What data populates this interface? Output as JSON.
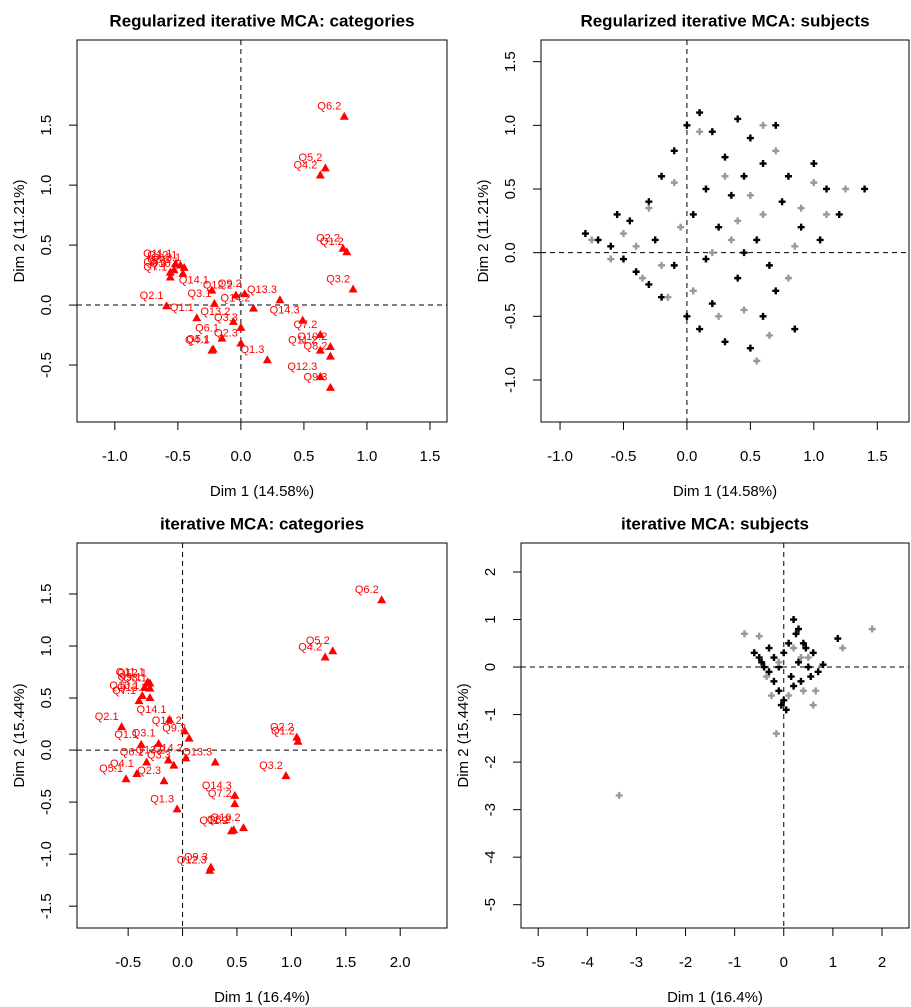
{
  "chart_data": [
    {
      "type": "scatter",
      "marker": "triangle",
      "color": "#ff0000",
      "title": "Regularized iterative MCA: categories",
      "xlabel": "Dim 1 (14.58%)",
      "ylabel": "Dim 2 (11.21%)",
      "xlim": [
        -1.3,
        1.635
      ],
      "ylim": [
        -0.975,
        2.21
      ],
      "xticks": [
        {
          "value": -1,
          "label": "-1.0"
        },
        -0.5,
        {
          "value": 0,
          "label": "0.0"
        },
        0.5,
        {
          "value": 1,
          "label": "1.0"
        },
        1.5
      ],
      "yticks": [
        -0.5,
        {
          "value": 0,
          "label": "0.0"
        },
        0.5,
        {
          "value": 1,
          "label": "1.0"
        },
        1.5
      ],
      "hline": 0,
      "vline": 0,
      "labels": [
        "Q6.2",
        "Q5.2",
        "Q4.2",
        "Q2.2",
        "Q1.2",
        "Q3.2",
        "Q11.1",
        "Q12.1",
        "Q8.1",
        "Q13.1",
        "Q9.1",
        "Q10.1",
        "Q7.1",
        "Q12.2",
        "Q14.1",
        "Q9.2",
        "Q2.1",
        "Q3.1",
        "Q1.1",
        "Q13.2",
        "Q14.2",
        "Q13.3",
        "Q3.3",
        "Q2.3",
        "Q6.1",
        "Q4.1",
        "Q5.1",
        "Q1.3",
        "Q14.3",
        "Q7.2",
        "Q11.2",
        "Q10.2",
        "Q8.2",
        "Q12.3",
        "Q9.3"
      ],
      "x": [
        0.82,
        0.67,
        0.63,
        0.81,
        0.84,
        0.89,
        -0.52,
        -0.48,
        -0.53,
        -0.45,
        -0.56,
        -0.46,
        -0.56,
        -0.04,
        -0.23,
        0.03,
        -0.59,
        -0.21,
        -0.35,
        -0.06,
        0.1,
        0.31,
        0,
        0,
        -0.15,
        -0.23,
        -0.22,
        0.21,
        0.49,
        0.63,
        0.63,
        0.71,
        0.71,
        0.63,
        0.71
      ],
      "y": [
        1.57,
        1.14,
        1.08,
        0.47,
        0.44,
        0.13,
        0.34,
        0.33,
        0.29,
        0.31,
        0.27,
        0.26,
        0.23,
        0.08,
        0.12,
        0.09,
        -0.01,
        0.01,
        -0.11,
        -0.14,
        -0.03,
        0.04,
        -0.19,
        -0.32,
        -0.28,
        -0.38,
        -0.37,
        -0.46,
        -0.13,
        -0.25,
        -0.38,
        -0.35,
        -0.43,
        -0.6,
        -0.69
      ]
    },
    {
      "type": "scatter",
      "marker": "plus",
      "title": "Regularized iterative MCA: subjects",
      "xlabel": "Dim 1 (14.58%)",
      "ylabel": "Dim 2 (11.21%)",
      "xlim": [
        -1.15,
        1.75
      ],
      "ylim": [
        -1.33,
        1.67
      ],
      "xticks": [
        {
          "value": -1,
          "label": "-1.0"
        },
        -0.5,
        {
          "value": 0,
          "label": "0.0"
        },
        0.5,
        {
          "value": 1,
          "label": "1.0"
        },
        1.5
      ],
      "yticks": [
        {
          "value": -1,
          "label": "-1.0"
        },
        -0.5,
        {
          "value": 0,
          "label": "0.0"
        },
        0.5,
        {
          "value": 1,
          "label": "1.0"
        },
        1.5
      ],
      "hline": 0,
      "vline": 0,
      "series": [
        {
          "color": "#000000",
          "x": [
            -0.8,
            -0.7,
            -0.6,
            -0.5,
            -0.45,
            -0.4,
            -0.3,
            -0.3,
            -0.2,
            -0.2,
            -0.1,
            -0.1,
            0,
            0,
            0.05,
            0.1,
            0.1,
            0.15,
            0.2,
            0.2,
            0.25,
            0.3,
            0.3,
            0.35,
            0.4,
            0.4,
            0.45,
            0.5,
            0.5,
            0.55,
            0.6,
            0.6,
            0.7,
            0.7,
            0.75,
            0.8,
            0.85,
            0.9,
            1.0,
            1.05,
            1.1,
            1.2,
            1.4,
            -0.55,
            -0.25,
            0.15,
            0.45,
            0.65
          ],
          "y": [
            0.15,
            0.1,
            0.05,
            -0.05,
            0.25,
            -0.15,
            0.4,
            -0.25,
            0.6,
            -0.35,
            0.8,
            -0.1,
            1.0,
            -0.5,
            0.3,
            1.1,
            -0.6,
            0.5,
            0.95,
            -0.4,
            0.2,
            0.75,
            -0.7,
            0.45,
            1.05,
            -0.2,
            0.6,
            0.9,
            -0.75,
            0.1,
            0.7,
            -0.5,
            1.0,
            -0.3,
            0.4,
            0.6,
            -0.6,
            0.2,
            0.7,
            0.1,
            0.5,
            0.3,
            0.5,
            0.3,
            0.1,
            -0.05,
            0.0,
            -0.1
          ]
        },
        {
          "color": "#999999",
          "x": [
            -0.75,
            -0.6,
            -0.5,
            -0.35,
            -0.3,
            -0.2,
            -0.1,
            -0.05,
            0.05,
            0.1,
            0.2,
            0.25,
            0.3,
            0.4,
            0.45,
            0.5,
            0.55,
            0.6,
            0.7,
            0.8,
            0.9,
            1.0,
            1.1,
            1.25,
            -0.4,
            -0.15,
            0.35,
            0.65,
            0.85,
            0.6
          ],
          "y": [
            0.1,
            -0.05,
            0.15,
            -0.2,
            0.35,
            -0.1,
            0.55,
            0.2,
            -0.3,
            0.95,
            0.0,
            -0.5,
            0.6,
            0.25,
            -0.45,
            0.45,
            -0.85,
            0.3,
            0.8,
            -0.2,
            0.35,
            0.55,
            0.3,
            0.5,
            0.05,
            -0.35,
            0.1,
            -0.65,
            0.05,
            1.0
          ]
        }
      ]
    },
    {
      "type": "scatter",
      "marker": "triangle",
      "color": "#ff0000",
      "title": "iterative MCA: categories",
      "xlabel": "Dim 1 (16.4%)",
      "ylabel": "Dim 2 (15.44%)",
      "xlim": [
        -0.97,
        2.43
      ],
      "ylim": [
        -1.71,
        1.99
      ],
      "xticks": [
        -0.5,
        {
          "value": 0,
          "label": "0.0"
        },
        0.5,
        {
          "value": 1,
          "label": "1.0"
        },
        1.5,
        {
          "value": 2,
          "label": "2.0"
        }
      ],
      "yticks": [
        -1.5,
        {
          "value": -1,
          "label": "-1.0"
        },
        -0.5,
        {
          "value": 0,
          "label": "0.0"
        },
        0.5,
        {
          "value": 1,
          "label": "1.0"
        },
        1.5
      ],
      "hline": 0,
      "vline": 0,
      "labels": [
        "Q6.2",
        "Q5.2",
        "Q4.2",
        "Q11.1",
        "Q12.1",
        "Q9.1",
        "Q8.1",
        "Q10.1",
        "Q13.1",
        "Q7.1",
        "Q14.1",
        "Q12.2",
        "Q9.2",
        "Q2.1",
        "Q1.1",
        "Q3.1",
        "Q2.2",
        "Q1.2",
        "Q13.2",
        "Q14.2",
        "Q13.3",
        "Q3.3",
        "Q6.1",
        "Q4.1",
        "Q5.1",
        "Q2.3",
        "Q3.2",
        "Q14.3",
        "Q7.2",
        "Q1.3",
        "Q8.2",
        "Q10.2",
        "Q11.2",
        "Q9.3",
        "Q12.3"
      ],
      "x": [
        1.83,
        1.38,
        1.31,
        -0.32,
        -0.3,
        -0.35,
        -0.3,
        -0.37,
        -0.3,
        -0.4,
        -0.12,
        0.02,
        0.06,
        -0.56,
        -0.38,
        -0.22,
        1.05,
        1.06,
        -0.13,
        0.03,
        0.3,
        -0.08,
        -0.33,
        -0.42,
        -0.52,
        -0.17,
        0.95,
        0.48,
        0.48,
        -0.05,
        0.47,
        0.56,
        0.45,
        0.26,
        0.25
      ],
      "y": [
        1.44,
        0.95,
        0.89,
        0.65,
        0.64,
        0.6,
        0.59,
        0.52,
        0.5,
        0.47,
        0.29,
        0.18,
        0.11,
        0.22,
        0.05,
        0.06,
        0.12,
        0.08,
        -0.1,
        -0.08,
        -0.12,
        -0.15,
        -0.12,
        -0.23,
        -0.28,
        -0.3,
        -0.25,
        -0.44,
        -0.52,
        -0.57,
        -0.77,
        -0.75,
        -0.78,
        -1.13,
        -1.16
      ]
    },
    {
      "type": "scatter",
      "marker": "plus",
      "title": "iterative MCA: subjects",
      "xlabel": "Dim 1 (16.4%)",
      "ylabel": "Dim 2 (15.44%)",
      "xlim": [
        -5.35,
        2.55
      ],
      "ylim": [
        -5.49,
        2.61
      ],
      "xticks": [
        -5,
        -4,
        -3,
        -2,
        -1,
        0,
        1,
        2
      ],
      "yticks": [
        -5,
        -4,
        -3,
        -2,
        -1,
        0,
        1,
        2
      ],
      "hline": 0,
      "vline": 0,
      "series": [
        {
          "color": "#000000",
          "x": [
            -0.6,
            -0.5,
            -0.45,
            -0.4,
            -0.3,
            -0.3,
            -0.2,
            -0.2,
            -0.1,
            -0.1,
            0,
            0,
            0.05,
            0.1,
            0.15,
            0.2,
            0.2,
            0.3,
            0.3,
            0.35,
            0.4,
            0.5,
            0.55,
            0.6,
            0.7,
            0.8,
            1.1,
            0.25,
            -0.05,
            0.45
          ],
          "y": [
            0.3,
            0.2,
            0.1,
            0.0,
            -0.1,
            0.4,
            -0.3,
            0.2,
            -0.5,
            0.0,
            -0.7,
            0.3,
            -0.9,
            0.5,
            -0.2,
            1.0,
            -0.4,
            0.8,
            0.1,
            -0.3,
            0.5,
            0.0,
            -0.2,
            0.3,
            -0.1,
            0.05,
            0.6,
            0.7,
            -0.8,
            0.4
          ]
        },
        {
          "color": "#999999",
          "x": [
            -3.35,
            -0.8,
            -0.5,
            -0.35,
            -0.15,
            -0.1,
            0.1,
            0.2,
            0.4,
            0.5,
            0.6,
            0.65,
            1.2,
            1.8,
            0.35,
            -0.25
          ],
          "y": [
            -2.7,
            0.7,
            0.65,
            -0.2,
            -1.4,
            0.1,
            -0.6,
            0.4,
            -0.5,
            0.2,
            -0.8,
            -0.5,
            0.4,
            0.8,
            0.2,
            -0.6
          ]
        }
      ]
    }
  ]
}
